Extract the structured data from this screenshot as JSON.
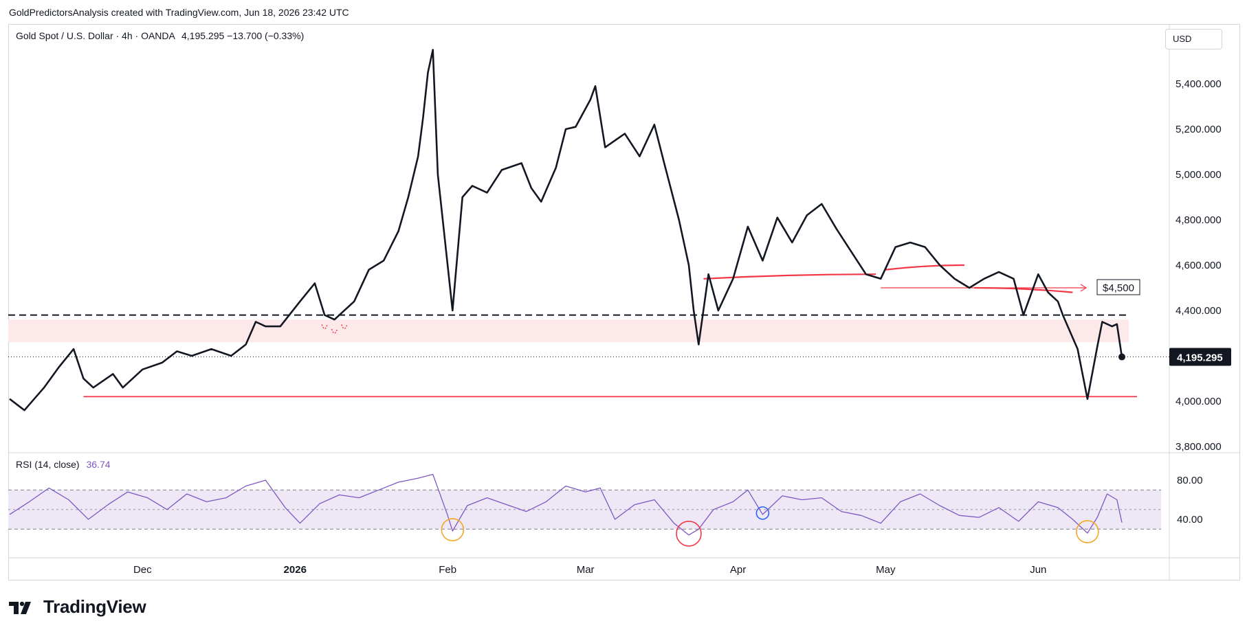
{
  "caption": "GoldPredictorsAnalysis created with TradingView.com, Jun 18, 2026 23:42 UTC",
  "legend": {
    "symbol": "Gold Spot / U.S. Dollar · 4h · OANDA",
    "values": "4,195.295 −13.700 (−0.33%)"
  },
  "currency": "USD",
  "rsi_legend": {
    "label": "RSI (14, close)",
    "value": "36.74"
  },
  "last_price_label": "4,195.295",
  "annotation_label": "$4,500",
  "brand": "TradingView",
  "colors": {
    "price_line": "#131722",
    "annotation": "#f23645",
    "rsi_line": "#7e57c2",
    "rsi_band": "#ede7f6",
    "zone": "#fde8ea",
    "highlight_circle": "#f5a623",
    "blue_circle": "#2962ff"
  },
  "chart_data": [
    {
      "type": "line",
      "series": [
        {
          "values": [
            [
              "2025-11-04",
              4010
            ],
            [
              "2025-11-07",
              3960
            ],
            [
              "2025-11-11",
              4060
            ],
            [
              "2025-11-14",
              4150
            ],
            [
              "2025-11-17",
              4230
            ],
            [
              "2025-11-19",
              4100
            ],
            [
              "2025-11-21",
              4060
            ],
            [
              "2025-11-25",
              4120
            ],
            [
              "2025-11-27",
              4060
            ],
            [
              "2025-12-01",
              4140
            ],
            [
              "2025-12-05",
              4170
            ],
            [
              "2025-12-08",
              4220
            ],
            [
              "2025-12-11",
              4200
            ],
            [
              "2025-12-15",
              4230
            ],
            [
              "2025-12-19",
              4200
            ],
            [
              "2025-12-22",
              4250
            ],
            [
              "2025-12-24",
              4350
            ],
            [
              "2025-12-26",
              4330
            ],
            [
              "2025-12-29",
              4330
            ],
            [
              "2026-01-02",
              4440
            ],
            [
              "2026-01-05",
              4520
            ],
            [
              "2026-01-07",
              4380
            ],
            [
              "2026-01-09",
              4360
            ],
            [
              "2026-01-13",
              4440
            ],
            [
              "2026-01-16",
              4580
            ],
            [
              "2026-01-19",
              4620
            ],
            [
              "2026-01-22",
              4750
            ],
            [
              "2026-01-24",
              4900
            ],
            [
              "2026-01-26",
              5080
            ],
            [
              "2026-01-27",
              5250
            ],
            [
              "2026-01-28",
              5450
            ],
            [
              "2026-01-29",
              5550
            ],
            [
              "2026-01-30",
              5000
            ],
            [
              "2026-02-02",
              4400
            ],
            [
              "2026-02-04",
              4900
            ],
            [
              "2026-02-06",
              4950
            ],
            [
              "2026-02-09",
              4920
            ],
            [
              "2026-02-12",
              5020
            ],
            [
              "2026-02-16",
              5050
            ],
            [
              "2026-02-18",
              4940
            ],
            [
              "2026-02-20",
              4880
            ],
            [
              "2026-02-23",
              5030
            ],
            [
              "2026-02-25",
              5200
            ],
            [
              "2026-02-27",
              5210
            ],
            [
              "2026-03-02",
              5330
            ],
            [
              "2026-03-03",
              5390
            ],
            [
              "2026-03-05",
              5120
            ],
            [
              "2026-03-09",
              5180
            ],
            [
              "2026-03-12",
              5080
            ],
            [
              "2026-03-15",
              5220
            ],
            [
              "2026-03-17",
              5050
            ],
            [
              "2026-03-20",
              4800
            ],
            [
              "2026-03-22",
              4600
            ],
            [
              "2026-03-23",
              4400
            ],
            [
              "2026-03-24",
              4250
            ],
            [
              "2026-03-26",
              4560
            ],
            [
              "2026-03-28",
              4400
            ],
            [
              "2026-03-31",
              4540
            ],
            [
              "2026-04-03",
              4770
            ],
            [
              "2026-04-06",
              4620
            ],
            [
              "2026-04-09",
              4810
            ],
            [
              "2026-04-12",
              4700
            ],
            [
              "2026-04-15",
              4820
            ],
            [
              "2026-04-18",
              4870
            ],
            [
              "2026-04-21",
              4760
            ],
            [
              "2026-04-24",
              4660
            ],
            [
              "2026-04-27",
              4560
            ],
            [
              "2026-04-30",
              4540
            ],
            [
              "2026-05-03",
              4680
            ],
            [
              "2026-05-06",
              4700
            ],
            [
              "2026-05-09",
              4680
            ],
            [
              "2026-05-12",
              4600
            ],
            [
              "2026-05-15",
              4540
            ],
            [
              "2026-05-18",
              4500
            ],
            [
              "2026-05-21",
              4540
            ],
            [
              "2026-05-24",
              4570
            ],
            [
              "2026-05-27",
              4540
            ],
            [
              "2026-05-29",
              4380
            ],
            [
              "2026-06-01",
              4560
            ],
            [
              "2026-06-03",
              4480
            ],
            [
              "2026-06-05",
              4440
            ],
            [
              "2026-06-06",
              4380
            ],
            [
              "2026-06-09",
              4230
            ],
            [
              "2026-06-11",
              4010
            ],
            [
              "2026-06-13",
              4240
            ],
            [
              "2026-06-14",
              4350
            ],
            [
              "2026-06-16",
              4330
            ],
            [
              "2026-06-17",
              4340
            ],
            [
              "2026-06-18",
              4195.295
            ]
          ]
        }
      ],
      "x_ticks": [
        {
          "date": "2025-12-01",
          "label": "Dec"
        },
        {
          "date": "2026-01-01",
          "label": "2026"
        },
        {
          "date": "2026-02-01",
          "label": "Feb"
        },
        {
          "date": "2026-03-01",
          "label": "Mar"
        },
        {
          "date": "2026-04-01",
          "label": "Apr"
        },
        {
          "date": "2026-05-01",
          "label": "May"
        },
        {
          "date": "2026-06-01",
          "label": "Jun"
        }
      ],
      "y_ticks": [
        "5,400.000",
        "5,200.000",
        "5,000.000",
        "4,800.000",
        "4,600.000",
        "4,400.000",
        "4,000.000",
        "3,800.000"
      ],
      "ylim": [
        3800,
        5600
      ],
      "annotations": {
        "support_line": 4020,
        "resistance_dashed": 4380,
        "zone": [
          4260,
          4360
        ],
        "last_price": 4195.295,
        "arrow_target": 4500
      }
    },
    {
      "type": "line",
      "title": "RSI (14, close)",
      "ylim": [
        0,
        100
      ],
      "y_ticks": [
        "80.00",
        "40.00"
      ],
      "band": [
        30,
        70
      ],
      "series": [
        {
          "values": [
            [
              "2025-11-04",
              45
            ],
            [
              "2025-11-08",
              58
            ],
            [
              "2025-11-12",
              72
            ],
            [
              "2025-11-16",
              60
            ],
            [
              "2025-11-20",
              40
            ],
            [
              "2025-11-24",
              55
            ],
            [
              "2025-11-28",
              68
            ],
            [
              "2025-12-02",
              62
            ],
            [
              "2025-12-06",
              50
            ],
            [
              "2025-12-10",
              66
            ],
            [
              "2025-12-14",
              58
            ],
            [
              "2025-12-18",
              62
            ],
            [
              "2025-12-22",
              74
            ],
            [
              "2025-12-26",
              80
            ],
            [
              "2025-12-30",
              52
            ],
            [
              "2026-01-02",
              36
            ],
            [
              "2026-01-06",
              56
            ],
            [
              "2026-01-10",
              65
            ],
            [
              "2026-01-14",
              62
            ],
            [
              "2026-01-18",
              70
            ],
            [
              "2026-01-22",
              78
            ],
            [
              "2026-01-26",
              82
            ],
            [
              "2026-01-29",
              86
            ],
            [
              "2026-02-01",
              44
            ],
            [
              "2026-02-02",
              28
            ],
            [
              "2026-02-05",
              54
            ],
            [
              "2026-02-09",
              62
            ],
            [
              "2026-02-13",
              55
            ],
            [
              "2026-02-17",
              48
            ],
            [
              "2026-02-21",
              58
            ],
            [
              "2026-02-25",
              74
            ],
            [
              "2026-03-01",
              68
            ],
            [
              "2026-03-04",
              72
            ],
            [
              "2026-03-07",
              40
            ],
            [
              "2026-03-11",
              55
            ],
            [
              "2026-03-15",
              60
            ],
            [
              "2026-03-19",
              36
            ],
            [
              "2026-03-22",
              24
            ],
            [
              "2026-03-24",
              30
            ],
            [
              "2026-03-27",
              50
            ],
            [
              "2026-03-31",
              58
            ],
            [
              "2026-04-03",
              70
            ],
            [
              "2026-04-06",
              45
            ],
            [
              "2026-04-10",
              64
            ],
            [
              "2026-04-14",
              60
            ],
            [
              "2026-04-18",
              62
            ],
            [
              "2026-04-22",
              48
            ],
            [
              "2026-04-26",
              44
            ],
            [
              "2026-04-30",
              36
            ],
            [
              "2026-05-04",
              58
            ],
            [
              "2026-05-08",
              66
            ],
            [
              "2026-05-12",
              54
            ],
            [
              "2026-05-16",
              44
            ],
            [
              "2026-05-20",
              42
            ],
            [
              "2026-05-24",
              52
            ],
            [
              "2026-05-28",
              38
            ],
            [
              "2026-06-01",
              58
            ],
            [
              "2026-06-05",
              52
            ],
            [
              "2026-06-08",
              40
            ],
            [
              "2026-06-11",
              26
            ],
            [
              "2026-06-13",
              42
            ],
            [
              "2026-06-15",
              66
            ],
            [
              "2026-06-17",
              60
            ],
            [
              "2026-06-18",
              36.74
            ]
          ]
        }
      ],
      "marked_points": [
        "2026-02-02",
        "2026-03-22",
        "2026-04-06",
        "2026-06-11"
      ]
    }
  ]
}
